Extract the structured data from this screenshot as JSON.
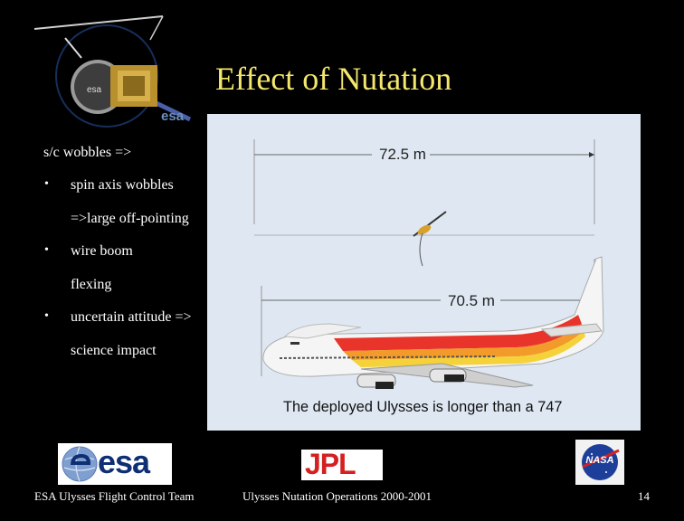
{
  "slide": {
    "title": "Effect of Nutation",
    "logo_text": "esa",
    "bullets": [
      {
        "text": "s/c wobbles =>",
        "level": 0
      },
      {
        "text": "spin axis wobbles",
        "level": 1
      },
      {
        "text": "=>large off-pointing",
        "level": 2
      },
      {
        "text": "wire boom",
        "level": 1
      },
      {
        "text": "flexing",
        "level": 2
      },
      {
        "text": "uncertain attitude =>",
        "level": 1
      },
      {
        "text": "science impact",
        "level": 2
      }
    ],
    "bullet_symbol": "•",
    "illustration": {
      "dim_top": "72.5 m",
      "dim_bottom": "70.5 m",
      "caption": "The deployed Ulysses is longer than a 747"
    },
    "footer": {
      "left": "ESA Ulysses Flight Control Team",
      "center": "Ulysses Nutation Operations 2000-2001",
      "page": "14"
    },
    "logos": {
      "esa": "esa",
      "jpl": "JPL",
      "nasa": "NASA"
    },
    "colors": {
      "background": "#000000",
      "title": "#f4e76e",
      "text": "#ffffff",
      "panel": "#dfe8f2"
    }
  }
}
